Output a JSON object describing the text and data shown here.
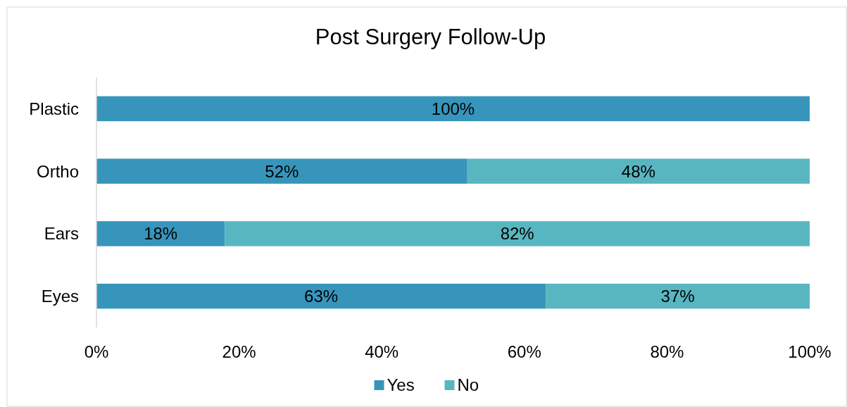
{
  "chart_data": {
    "type": "bar",
    "orientation": "horizontal",
    "stacked": true,
    "title": "Post Surgery Follow-Up",
    "categories": [
      "Plastic",
      "Ortho",
      "Ears",
      "Eyes"
    ],
    "series": [
      {
        "name": "Yes",
        "color": "#3795bc",
        "values": [
          100,
          52,
          18,
          63
        ],
        "value_labels": [
          "100%",
          "52%",
          "18%",
          "63%"
        ]
      },
      {
        "name": "No",
        "color": "#58b6c0",
        "values": [
          0,
          48,
          82,
          37
        ],
        "value_labels": [
          null,
          "48%",
          "82%",
          "37%"
        ]
      }
    ],
    "xlim": [
      0,
      100
    ],
    "xticks": [
      {
        "value": 0,
        "label": "0%"
      },
      {
        "value": 20,
        "label": "20%"
      },
      {
        "value": 40,
        "label": "40%"
      },
      {
        "value": 60,
        "label": "60%"
      },
      {
        "value": 80,
        "label": "80%"
      },
      {
        "value": 100,
        "label": "100%"
      }
    ],
    "grid": false,
    "legend": "bottom"
  }
}
